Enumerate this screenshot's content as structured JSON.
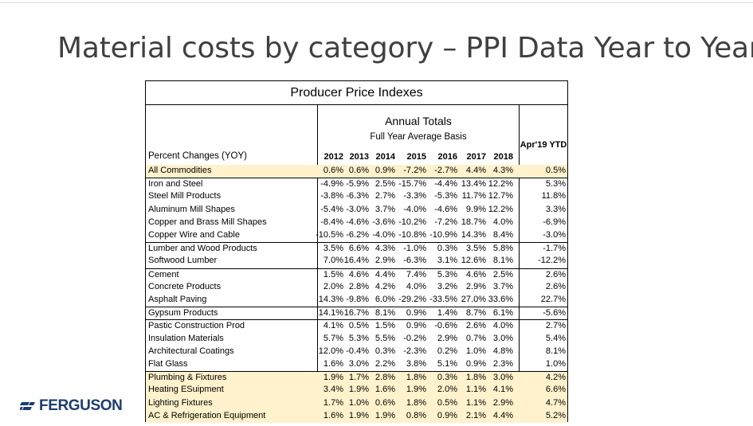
{
  "slide": {
    "title": "Material costs by category – PPI Data Year to Year",
    "logo_text": "FERGUSON"
  },
  "table": {
    "caption": "Producer Price Indexes",
    "header": {
      "annual": "Annual Totals",
      "basis": "Full Year Average Basis",
      "row_label_header": "Percent Changes (YOY)",
      "years": [
        "2012",
        "2013",
        "2014",
        "2015",
        "2016",
        "2017",
        "2018"
      ],
      "ytd_header": "Apr'19 YTD"
    },
    "rows": [
      {
        "label": "All Commodities",
        "values": [
          "0.6%",
          "0.6%",
          "0.9%",
          "-7.2%",
          "-2.7%",
          "4.4%",
          "4.3%"
        ],
        "ytd": "0.5%",
        "highlight": true
      },
      {
        "label": "Iron and Steel",
        "values": [
          "-4.9%",
          "-5.9%",
          "2.5%",
          "-15.7%",
          "-4.4%",
          "13.4%",
          "12.2%"
        ],
        "ytd": "5.3%",
        "highlight": false
      },
      {
        "label": "Steel Mill Products",
        "values": [
          "-3.8%",
          "-6.3%",
          "2.7%",
          "-3.3%",
          "-5.3%",
          "11.7%",
          "12.7%"
        ],
        "ytd": "11.8%",
        "highlight": false
      },
      {
        "label": "Aluminum Mill Shapes",
        "values": [
          "-5.4%",
          "-3.0%",
          "3.7%",
          "-4.0%",
          "-4.6%",
          "9.9%",
          "12.2%"
        ],
        "ytd": "3.3%",
        "highlight": false
      },
      {
        "label": "Copper and Brass Mill Shapes",
        "values": [
          "-8.4%",
          "-4.6%",
          "-3.6%",
          "-10.2%",
          "-7.2%",
          "18.7%",
          "4.0%"
        ],
        "ytd": "-6.9%",
        "highlight": false
      },
      {
        "label": "Copper Wire and Cable",
        "values": [
          "-10.5%",
          "-6.2%",
          "-4.0%",
          "-10.8%",
          "-10.9%",
          "14.3%",
          "8.4%"
        ],
        "ytd": "-3.0%",
        "highlight": false
      },
      {
        "label": "Lumber and Wood Products",
        "values": [
          "3.5%",
          "6.6%",
          "4.3%",
          "-1.0%",
          "0.3%",
          "3.5%",
          "5.8%"
        ],
        "ytd": "-1.7%",
        "highlight": false
      },
      {
        "label": "Softwood Lumber",
        "values": [
          "7.0%",
          "16.4%",
          "2.9%",
          "-6.3%",
          "3.1%",
          "12.6%",
          "8.1%"
        ],
        "ytd": "-12.2%",
        "highlight": false
      },
      {
        "label": "Cement",
        "values": [
          "1.5%",
          "4.6%",
          "4.4%",
          "7.4%",
          "5.3%",
          "4.6%",
          "2.5%"
        ],
        "ytd": "2.6%",
        "highlight": false
      },
      {
        "label": "Concrete Products",
        "values": [
          "2.0%",
          "2.8%",
          "4.2%",
          "4.0%",
          "3.2%",
          "2.9%",
          "3.7%"
        ],
        "ytd": "2.6%",
        "highlight": false
      },
      {
        "label": "Asphalt Paving",
        "values": [
          "14.3%",
          "-9.8%",
          "6.0%",
          "-29.2%",
          "-33.5%",
          "27.0%",
          "33.6%"
        ],
        "ytd": "22.7%",
        "highlight": false
      },
      {
        "label": "Gypsum Products",
        "values": [
          "14.1%",
          "16.7%",
          "8.1%",
          "0.9%",
          "1.4%",
          "8.7%",
          "6.1%"
        ],
        "ytd": "-5.6%",
        "highlight": false
      },
      {
        "label": "Pastic Construction Prod",
        "values": [
          "4.1%",
          "0.5%",
          "1.5%",
          "0.9%",
          "-0.6%",
          "2.6%",
          "4.0%"
        ],
        "ytd": "2.7%",
        "highlight": false
      },
      {
        "label": "Insulation Materials",
        "values": [
          "5.7%",
          "5.3%",
          "5.5%",
          "-0.2%",
          "2.9%",
          "0.7%",
          "3.0%"
        ],
        "ytd": "5.4%",
        "highlight": false
      },
      {
        "label": "Architectural Coatings",
        "values": [
          "12.0%",
          "-0.4%",
          "0.3%",
          "-2.3%",
          "0.2%",
          "1.0%",
          "4.8%"
        ],
        "ytd": "8.1%",
        "highlight": false
      },
      {
        "label": "Flat Glass",
        "values": [
          "1.6%",
          "3.0%",
          "2.2%",
          "3.8%",
          "5.1%",
          "0.9%",
          "2.3%"
        ],
        "ytd": "1.0%",
        "highlight": false
      },
      {
        "label": "Plumbing & Fixtures",
        "values": [
          "1.9%",
          "1.7%",
          "2.8%",
          "1.8%",
          "0.3%",
          "1.8%",
          "3.0%"
        ],
        "ytd": "4.2%",
        "highlight": true
      },
      {
        "label": "Heating ESuipment",
        "values": [
          "3.4%",
          "1.9%",
          "1.6%",
          "1.9%",
          "2.0%",
          "1.1%",
          "4.1%"
        ],
        "ytd": "6.6%",
        "highlight": true
      },
      {
        "label": "Lighting Fixtures",
        "values": [
          "1.7%",
          "1.0%",
          "0.6%",
          "1.8%",
          "0.5%",
          "1.1%",
          "2.9%"
        ],
        "ytd": "4.7%",
        "highlight": true
      },
      {
        "label": "AC & Refrigeration Equipment",
        "values": [
          "1.6%",
          "1.9%",
          "1.9%",
          "0.8%",
          "0.9%",
          "2.1%",
          "4.4%"
        ],
        "ytd": "5.2%",
        "highlight": true
      }
    ]
  },
  "colors": {
    "highlight": "#fff2cc",
    "title": "#404040",
    "logo": "#1b3e6f"
  }
}
